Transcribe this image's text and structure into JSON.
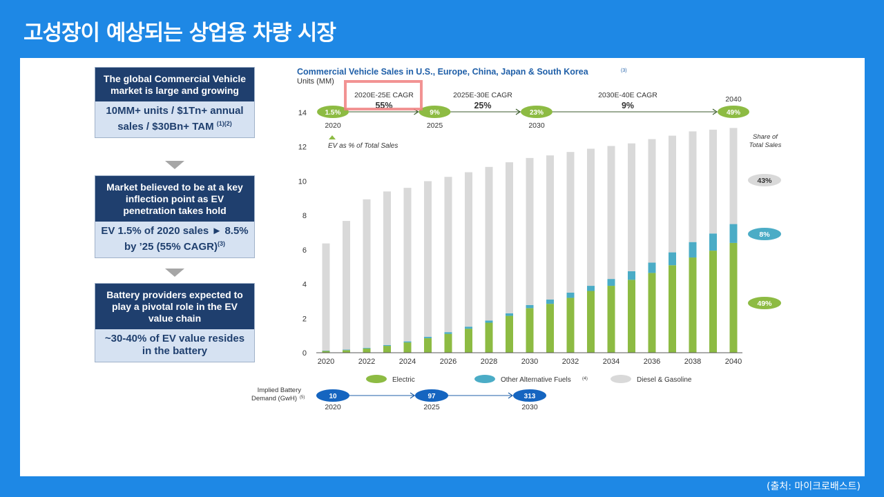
{
  "slide": {
    "title": "고성장이 예상되는 상업용 차량 시장",
    "source": "(출처: 마이크로배스트)"
  },
  "left_panel": {
    "boxes": [
      {
        "head": "The global Commercial Vehicle market is large and growing",
        "body": "10MM+ units / $1Tn+ annual sales / $30Bn+ TAM",
        "note": "(1)(2)"
      },
      {
        "head": "Market believed to be at a key inflection point as EV penetration takes hold",
        "body": "EV 1.5% of 2020 sales ► 8.5% by ’25 (55% CAGR)",
        "note": "(3)"
      },
      {
        "head": "Battery providers expected to play a pivotal role in the EV value chain",
        "body": "~30-40% of EV value resides in the battery",
        "note": ""
      }
    ]
  },
  "chart_data": {
    "type": "bar",
    "stacked": true,
    "title": "Commercial Vehicle Sales in U.S., Europe, China, Japan & South Korea",
    "title_note": "(3)",
    "ylabel": "Units (MM)",
    "ylim": [
      0,
      14
    ],
    "yticks": [
      0,
      2,
      4,
      6,
      8,
      10,
      12,
      14
    ],
    "xtick_labels": [
      "2020",
      "2022",
      "2024",
      "2026",
      "2028",
      "2030",
      "2032",
      "2034",
      "2036",
      "2038",
      "2040"
    ],
    "categories": [
      "2020",
      "2021",
      "2022",
      "2023",
      "2024",
      "2025",
      "2026",
      "2027",
      "2028",
      "2029",
      "2030",
      "2031",
      "2032",
      "2033",
      "2034",
      "2035",
      "2036",
      "2037",
      "2038",
      "2039",
      "2040"
    ],
    "series": [
      {
        "name": "Electric",
        "color": "#8dbb43",
        "values": [
          0.1,
          0.15,
          0.25,
          0.4,
          0.6,
          0.85,
          1.1,
          1.4,
          1.75,
          2.15,
          2.6,
          2.85,
          3.2,
          3.6,
          3.9,
          4.25,
          4.65,
          5.1,
          5.55,
          5.95,
          6.4
        ]
      },
      {
        "name": "Other Alternative Fuels",
        "color": "#4bacc6",
        "note": "(4)",
        "values": [
          0.02,
          0.03,
          0.04,
          0.05,
          0.06,
          0.08,
          0.1,
          0.12,
          0.13,
          0.15,
          0.18,
          0.25,
          0.3,
          0.3,
          0.4,
          0.5,
          0.6,
          0.75,
          0.9,
          1.0,
          1.1
        ]
      },
      {
        "name": "Diesel & Gasoline",
        "color": "#d9d9d9",
        "values": [
          6.25,
          7.5,
          8.65,
          8.95,
          8.95,
          9.07,
          9.05,
          9.0,
          8.95,
          8.8,
          8.57,
          8.4,
          8.2,
          7.99,
          7.75,
          7.45,
          7.2,
          6.8,
          6.45,
          6.05,
          5.6
        ]
      }
    ],
    "ev_share_track": {
      "milestones": [
        {
          "year": "2020",
          "value": "1.5%"
        },
        {
          "year": "2025",
          "value": "9%"
        },
        {
          "year": "2030",
          "value": "23%"
        },
        {
          "year": "2040",
          "value": "49%"
        }
      ],
      "cagr_headers": [
        "2020E-25E  CAGR",
        "2025E-30E  CAGR",
        "2030E-40E  CAGR"
      ],
      "cagr_values": [
        "55%",
        "25%",
        "9%"
      ],
      "end_label": "2040",
      "note": "EV as % of Total Sales"
    },
    "share_of_total_sales": {
      "label": "Share of Total Sales",
      "items": [
        {
          "value": "43%",
          "color": "#d9d9d9",
          "text_color": "#333333"
        },
        {
          "value": "8%",
          "color": "#4bacc6",
          "text_color": "#ffffff"
        },
        {
          "value": "49%",
          "color": "#8dbb43",
          "text_color": "#ffffff"
        }
      ]
    },
    "battery_demand": {
      "label": "Implied Battery Demand (GwH)",
      "note": "(5)",
      "points": [
        {
          "year": "2020",
          "value": "10"
        },
        {
          "year": "2025",
          "value": "97"
        },
        {
          "year": "2030",
          "value": "313"
        }
      ]
    },
    "highlight_color": "#f08080"
  }
}
